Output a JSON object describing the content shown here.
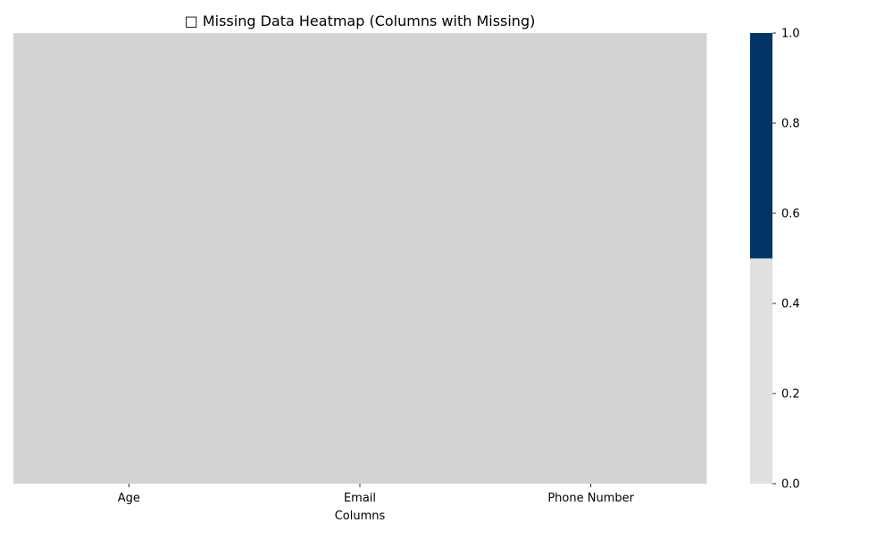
{
  "chart_data": {
    "type": "heatmap",
    "title": "□ Missing Data Heatmap (Columns with Missing)",
    "xlabel": "Columns",
    "ylabel": "",
    "categories": [
      "Age",
      "Email",
      "Phone Number"
    ],
    "values": [
      0,
      0,
      0
    ],
    "colorbar": {
      "range": [
        0,
        1
      ],
      "ticks": [
        "0.0",
        "0.2",
        "0.4",
        "0.6",
        "0.8",
        "1.0"
      ],
      "colors": [
        {
          "from": 0.0,
          "to": 0.5,
          "color": "#e0e0e0"
        },
        {
          "from": 0.5,
          "to": 1.0,
          "color": "#003366"
        }
      ]
    },
    "cell_color": "#d3d3d3"
  }
}
